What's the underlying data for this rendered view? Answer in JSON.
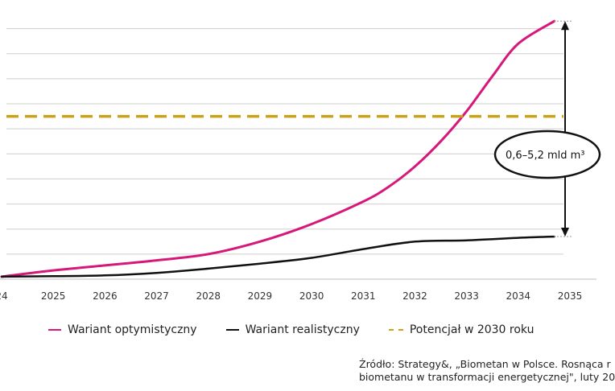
{
  "chart_data": {
    "type": "line",
    "x_ticks": [
      "24",
      "2025",
      "2026",
      "2027",
      "2028",
      "2029",
      "2030",
      "2031",
      "2032",
      "2033",
      "2034",
      "2035"
    ],
    "xlim": [
      2024,
      2035
    ],
    "ylim": [
      0,
      10.5
    ],
    "grid": true,
    "series": [
      {
        "name": "Wariant optymistyczny",
        "color": "#d6187a",
        "x": [
          2024.0,
          2025.0,
          2026.0,
          2027.0,
          2028.0,
          2029.0,
          2030.0,
          2031.0,
          2031.5,
          2032.0,
          2032.5,
          2033.0,
          2033.5,
          2034.0,
          2034.7
        ],
        "y": [
          0.1,
          0.35,
          0.55,
          0.75,
          1.0,
          1.5,
          2.2,
          3.1,
          3.7,
          4.5,
          5.5,
          6.7,
          8.1,
          9.4,
          10.3
        ]
      },
      {
        "name": "Wariant realistyczny",
        "color": "#111111",
        "x": [
          2024.0,
          2025.0,
          2026.0,
          2027.0,
          2028.0,
          2029.0,
          2030.0,
          2031.0,
          2032.0,
          2033.0,
          2034.0,
          2034.7
        ],
        "y": [
          0.1,
          0.12,
          0.15,
          0.25,
          0.42,
          0.62,
          0.85,
          1.2,
          1.5,
          1.55,
          1.65,
          1.7
        ]
      },
      {
        "name": "Potencjał w 2030 roku",
        "color": "#c9a21a",
        "style": "dashed",
        "x": [
          2024.0,
          2035.0
        ],
        "y": [
          6.5,
          6.5
        ]
      }
    ],
    "annotation": "0,6–5,2 mld m³"
  },
  "legend": [
    {
      "label": "Wariant optymistyczny",
      "color": "#d6187a",
      "style": "solid"
    },
    {
      "label": "Wariant realistyczny",
      "color": "#111111",
      "style": "solid"
    },
    {
      "label": "Potencjał w 2030 roku",
      "color": "#c9a21a",
      "style": "dashed"
    }
  ],
  "source": {
    "line1": "Źródło: Strategy&, „Biometan w Polsce. Rosnąca r",
    "line2": "biometanu w transformacji energetycznej\", luty 20"
  }
}
